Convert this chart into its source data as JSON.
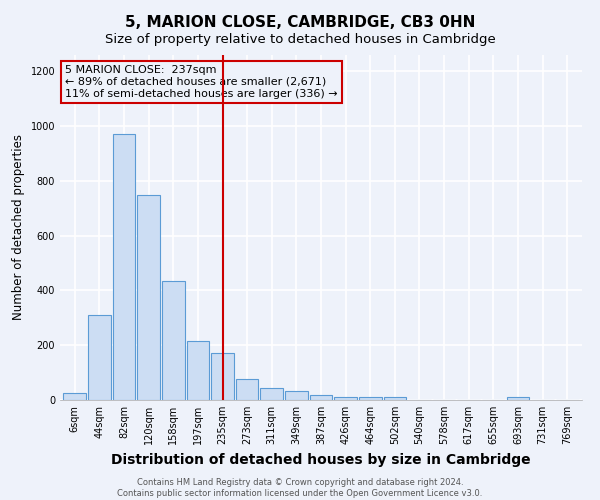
{
  "title": "5, MARION CLOSE, CAMBRIDGE, CB3 0HN",
  "subtitle": "Size of property relative to detached houses in Cambridge",
  "xlabel": "Distribution of detached houses by size in Cambridge",
  "ylabel": "Number of detached properties",
  "footnote1": "Contains HM Land Registry data © Crown copyright and database right 2024.",
  "footnote2": "Contains public sector information licensed under the Open Government Licence v3.0.",
  "bar_labels": [
    "6sqm",
    "44sqm",
    "82sqm",
    "120sqm",
    "158sqm",
    "197sqm",
    "235sqm",
    "273sqm",
    "311sqm",
    "349sqm",
    "387sqm",
    "426sqm",
    "464sqm",
    "502sqm",
    "540sqm",
    "578sqm",
    "617sqm",
    "655sqm",
    "693sqm",
    "731sqm",
    "769sqm"
  ],
  "bar_heights": [
    25,
    310,
    970,
    750,
    435,
    215,
    170,
    75,
    45,
    32,
    20,
    12,
    12,
    10,
    0,
    0,
    0,
    0,
    10,
    0,
    0
  ],
  "bar_color": "#ccddf3",
  "bar_edge_color": "#5b9bd5",
  "annotation_line1": "5 MARION CLOSE:  237sqm",
  "annotation_line2": "← 89% of detached houses are smaller (2,671)",
  "annotation_line3": "11% of semi-detached houses are larger (336) →",
  "vline_color": "#cc0000",
  "annotation_box_edge_color": "#cc0000",
  "ylim": [
    0,
    1260
  ],
  "yticks": [
    0,
    200,
    400,
    600,
    800,
    1000,
    1200
  ],
  "background_color": "#eef2fa",
  "grid_color": "#ffffff",
  "title_fontsize": 11,
  "subtitle_fontsize": 9.5,
  "xlabel_fontsize": 10,
  "ylabel_fontsize": 8.5,
  "tick_fontsize": 7,
  "footnote_fontsize": 6,
  "annotation_fontsize": 8
}
